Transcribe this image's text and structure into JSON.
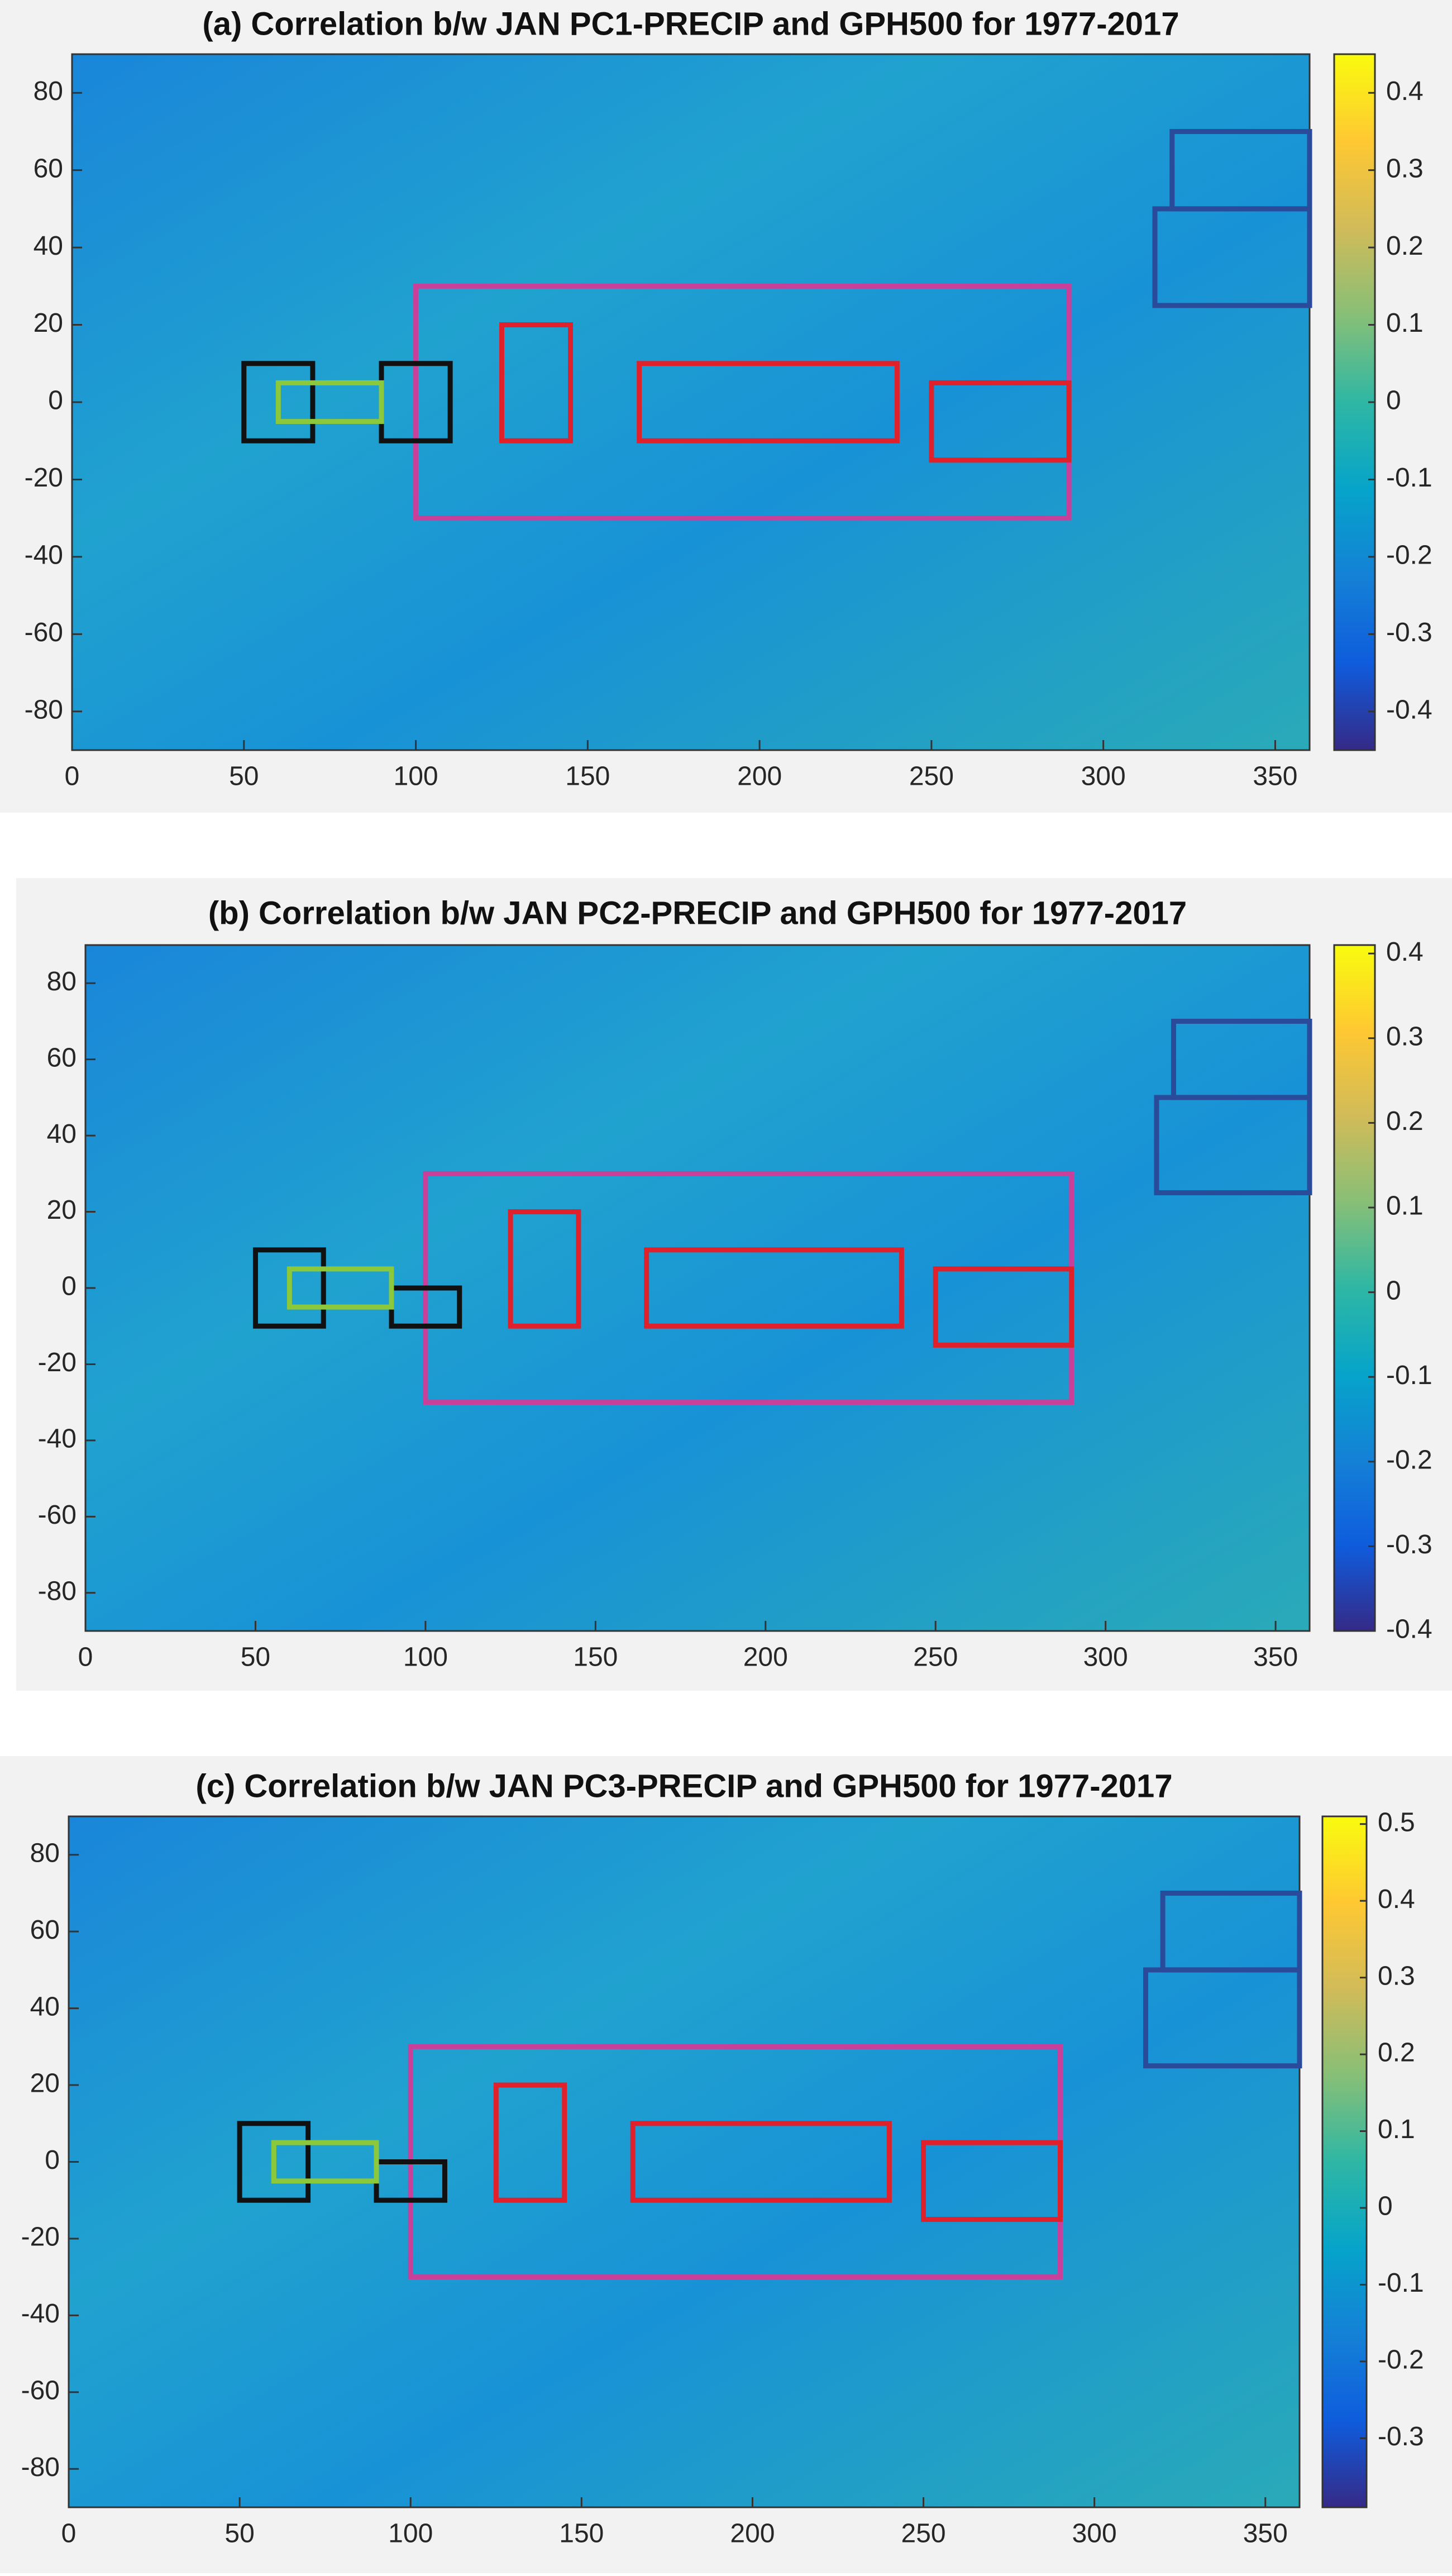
{
  "chart_data": [
    {
      "type": "map",
      "title": "(a) Correlation b/w JAN PC1-PRECIP and GPH500 for 1977-2017",
      "xlim": [
        0,
        360
      ],
      "ylim": [
        -90,
        90
      ],
      "xticks": [
        0,
        50,
        100,
        150,
        200,
        250,
        300,
        350
      ],
      "yticks": [
        -80,
        -60,
        -40,
        -20,
        0,
        20,
        40,
        60,
        80
      ],
      "colormap": "parula",
      "clim": [
        -0.45,
        0.45
      ],
      "cticks": [
        -0.4,
        -0.3,
        -0.2,
        -0.1,
        0,
        0.1,
        0.2,
        0.3,
        0.4
      ],
      "regions": [
        {
          "color": "#c8409a",
          "lon": [
            100,
            290
          ],
          "lat": [
            -30,
            30
          ]
        },
        {
          "color": "#e0202a",
          "lon": [
            125,
            145
          ],
          "lat": [
            -10,
            20
          ]
        },
        {
          "color": "#e0202a",
          "lon": [
            165,
            240
          ],
          "lat": [
            -10,
            10
          ]
        },
        {
          "color": "#e0202a",
          "lon": [
            250,
            290
          ],
          "lat": [
            -15,
            5
          ]
        },
        {
          "color": "#111111",
          "lon": [
            50,
            70
          ],
          "lat": [
            -10,
            10
          ]
        },
        {
          "color": "#111111",
          "lon": [
            90,
            110
          ],
          "lat": [
            -10,
            10
          ]
        },
        {
          "color": "#8cc83c",
          "lon": [
            60,
            90
          ],
          "lat": [
            -5,
            5
          ]
        },
        {
          "color": "#2a4a9a",
          "lon": [
            315,
            360
          ],
          "lat": [
            25,
            50
          ]
        },
        {
          "color": "#2a4a9a",
          "lon": [
            320,
            360
          ],
          "lat": [
            50,
            70
          ]
        }
      ]
    },
    {
      "type": "map",
      "title": "(b) Correlation b/w JAN PC2-PRECIP and GPH500 for 1977-2017",
      "xlim": [
        0,
        360
      ],
      "ylim": [
        -90,
        90
      ],
      "xticks": [
        0,
        50,
        100,
        150,
        200,
        250,
        300,
        350
      ],
      "yticks": [
        -80,
        -60,
        -40,
        -20,
        0,
        20,
        40,
        60,
        80
      ],
      "colormap": "parula",
      "clim": [
        -0.4,
        0.41
      ],
      "cticks": [
        -0.4,
        -0.3,
        -0.2,
        -0.1,
        0,
        0.1,
        0.2,
        0.3,
        0.4
      ],
      "regions": [
        {
          "color": "#c8409a",
          "lon": [
            100,
            290
          ],
          "lat": [
            -30,
            30
          ]
        },
        {
          "color": "#e0202a",
          "lon": [
            125,
            145
          ],
          "lat": [
            -10,
            20
          ]
        },
        {
          "color": "#e0202a",
          "lon": [
            165,
            240
          ],
          "lat": [
            -10,
            10
          ]
        },
        {
          "color": "#e0202a",
          "lon": [
            250,
            290
          ],
          "lat": [
            -15,
            5
          ]
        },
        {
          "color": "#111111",
          "lon": [
            50,
            70
          ],
          "lat": [
            -10,
            10
          ]
        },
        {
          "color": "#111111",
          "lon": [
            90,
            110
          ],
          "lat": [
            -10,
            0
          ]
        },
        {
          "color": "#8cc83c",
          "lon": [
            60,
            90
          ],
          "lat": [
            -5,
            5
          ]
        },
        {
          "color": "#2a4a9a",
          "lon": [
            315,
            360
          ],
          "lat": [
            25,
            50
          ]
        },
        {
          "color": "#2a4a9a",
          "lon": [
            320,
            360
          ],
          "lat": [
            50,
            70
          ]
        }
      ]
    },
    {
      "type": "map",
      "title": "(c) Correlation b/w JAN PC3-PRECIP and GPH500 for 1977-2017",
      "xlim": [
        0,
        360
      ],
      "ylim": [
        -90,
        90
      ],
      "xticks": [
        0,
        50,
        100,
        150,
        200,
        250,
        300,
        350
      ],
      "yticks": [
        -80,
        -60,
        -40,
        -20,
        0,
        20,
        40,
        60,
        80
      ],
      "colormap": "parula",
      "clim": [
        -0.39,
        0.51
      ],
      "cticks": [
        -0.3,
        -0.2,
        -0.1,
        0,
        0.1,
        0.2,
        0.3,
        0.4,
        0.5
      ],
      "regions": [
        {
          "color": "#c8409a",
          "lon": [
            100,
            290
          ],
          "lat": [
            -30,
            30
          ]
        },
        {
          "color": "#e0202a",
          "lon": [
            125,
            145
          ],
          "lat": [
            -10,
            20
          ]
        },
        {
          "color": "#e0202a",
          "lon": [
            165,
            240
          ],
          "lat": [
            -10,
            10
          ]
        },
        {
          "color": "#e0202a",
          "lon": [
            250,
            290
          ],
          "lat": [
            -15,
            5
          ]
        },
        {
          "color": "#111111",
          "lon": [
            50,
            70
          ],
          "lat": [
            -10,
            10
          ]
        },
        {
          "color": "#111111",
          "lon": [
            90,
            110
          ],
          "lat": [
            -10,
            0
          ]
        },
        {
          "color": "#8cc83c",
          "lon": [
            60,
            90
          ],
          "lat": [
            -5,
            5
          ]
        },
        {
          "color": "#2a4a9a",
          "lon": [
            315,
            360
          ],
          "lat": [
            25,
            50
          ]
        },
        {
          "color": "#2a4a9a",
          "lon": [
            320,
            360
          ],
          "lat": [
            50,
            70
          ]
        }
      ]
    }
  ]
}
